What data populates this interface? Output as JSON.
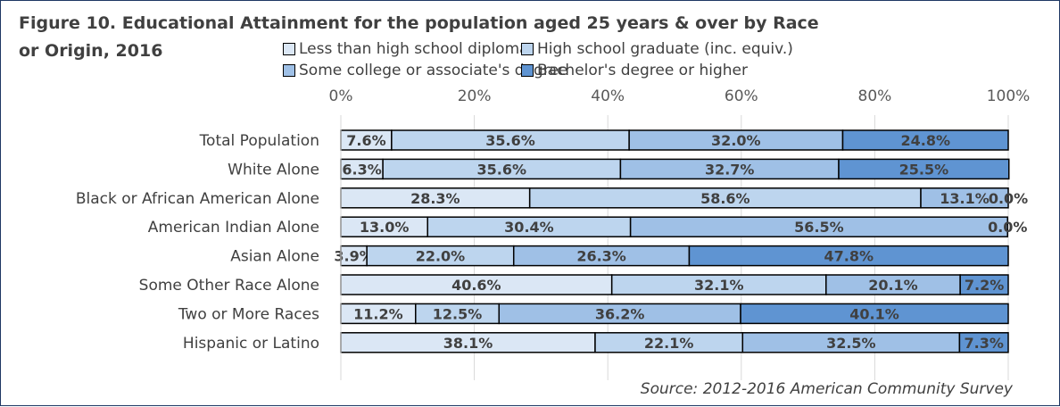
{
  "title": "Figure 10. Educational Attainment for the population aged 25 years & over by Race or Origin, 2016",
  "source": "Source: 2012-2016 American Community Survey",
  "chart_data": {
    "type": "bar",
    "orientation": "horizontal",
    "stacked": true,
    "categories": [
      "Total Population",
      "White Alone",
      "Black or African American Alone",
      "American Indian Alone",
      "Asian Alone",
      "Some Other Race Alone",
      "Two or More Races",
      "Hispanic or Latino"
    ],
    "series": [
      {
        "name": "Less than high school diploma",
        "color": "#dbe7f5",
        "values": [
          7.6,
          6.3,
          28.3,
          13.0,
          3.9,
          40.6,
          11.2,
          38.1
        ],
        "labels": [
          "7.6%",
          "6.3%",
          "28.3%",
          "13.0%",
          "3.9%",
          "40.6%",
          "11.2%",
          "38.1%"
        ]
      },
      {
        "name": "High school graduate (inc. equiv.)",
        "color": "#bdd5ee",
        "values": [
          35.6,
          35.6,
          58.6,
          30.4,
          22.0,
          32.1,
          12.5,
          22.1
        ],
        "labels": [
          "35.6%",
          "35.6%",
          "58.6%",
          "30.4%",
          "22.0%",
          "32.1%",
          "12.5%",
          "22.1%"
        ]
      },
      {
        "name": "Some college or associate's degree",
        "color": "#9fc0e6",
        "values": [
          32.0,
          32.7,
          13.1,
          56.5,
          26.3,
          20.1,
          36.2,
          32.5
        ],
        "labels": [
          "32.0%",
          "32.7%",
          "13.1%",
          "56.5%",
          "26.3%",
          "20.1%",
          "36.2%",
          "32.5%"
        ]
      },
      {
        "name": "Bachelor's degree or higher",
        "color": "#5f94d2",
        "values": [
          24.8,
          25.5,
          0.0,
          0.0,
          47.8,
          7.2,
          40.1,
          7.3
        ],
        "labels": [
          "24.8%",
          "25.5%",
          "0.0%",
          "0.0%",
          "47.8%",
          "7.2%",
          "40.1%",
          "7.3%"
        ]
      }
    ],
    "xlim": [
      0,
      100
    ],
    "xticks": [
      "0%",
      "20%",
      "40%",
      "60%",
      "80%",
      "100%"
    ],
    "xaxis_position": "top",
    "grid": true,
    "legend_position": "top"
  }
}
